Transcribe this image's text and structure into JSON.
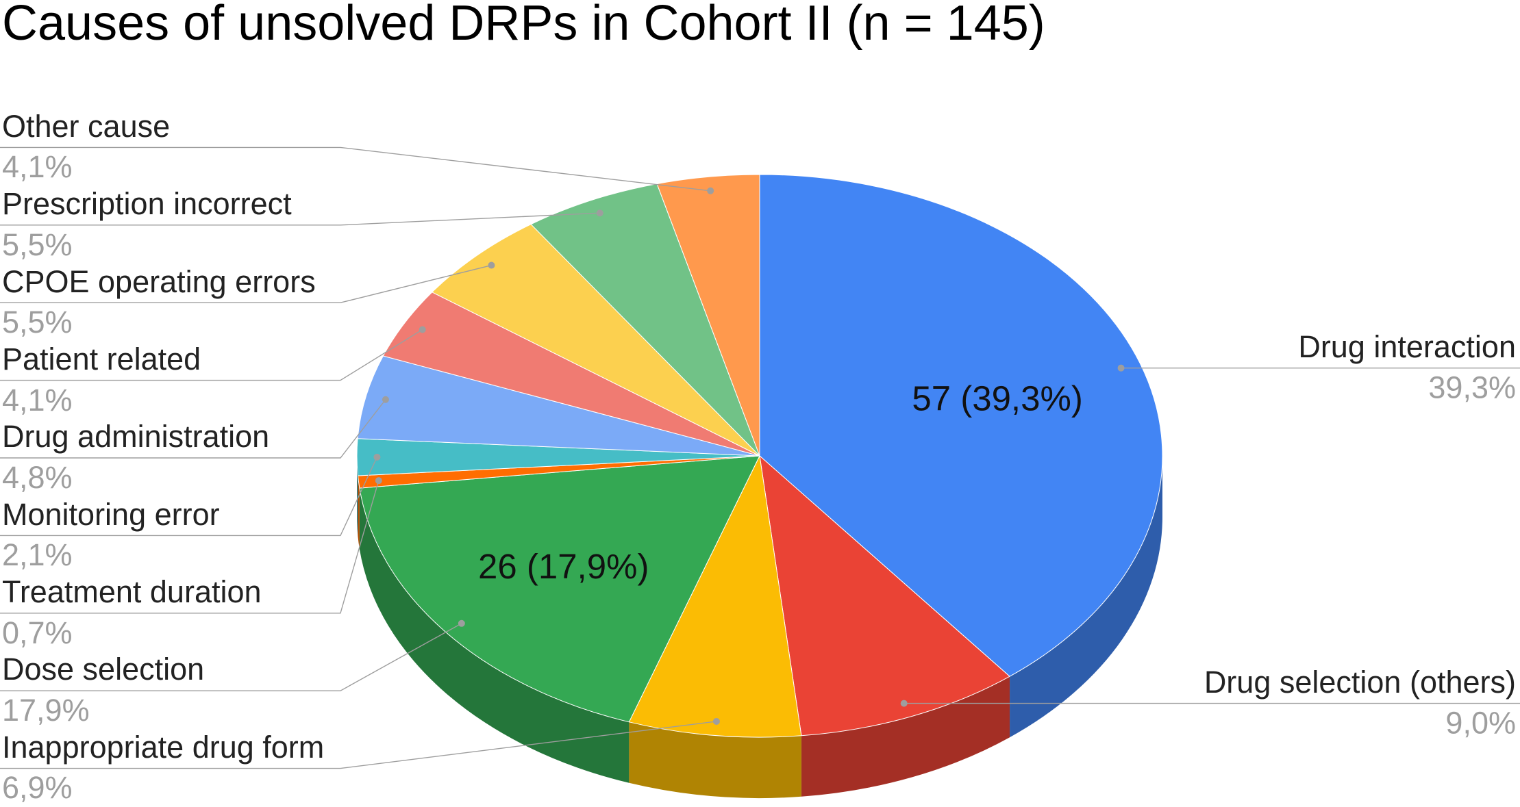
{
  "chart_data": {
    "type": "pie",
    "three_d": true,
    "title": "Causes of unsolved DRPs in Cohort II (n = 145)",
    "categories": [
      "Drug interaction",
      "Drug selection (others)",
      "Inappropriate drug form",
      "Dose selection",
      "Treatment duration",
      "Monitoring error",
      "Drug administration",
      "Patient related",
      "CPOE operating errors",
      "Prescription incorrect",
      "Other cause"
    ],
    "values": [
      39.3,
      9.0,
      6.9,
      17.9,
      0.7,
      2.1,
      4.8,
      4.1,
      5.5,
      5.5,
      4.1
    ],
    "value_labels": [
      "39,3%",
      "9,0%",
      "6,9%",
      "17,9%",
      "0,7%",
      "2,1%",
      "4,8%",
      "4,1%",
      "5,5%",
      "5,5%",
      "4,1%"
    ],
    "inside_labels": [
      "57 (39,3%)",
      "",
      "",
      "26 (17,9%)",
      "",
      "",
      "",
      "",
      "",
      "",
      ""
    ],
    "colors": [
      "#4285F4",
      "#EA4335",
      "#FBBC04",
      "#34A853",
      "#FF6D01",
      "#46BDC6",
      "#7BAAF7",
      "#F07B72",
      "#FCD04F",
      "#71C287",
      "#FF994D"
    ]
  }
}
